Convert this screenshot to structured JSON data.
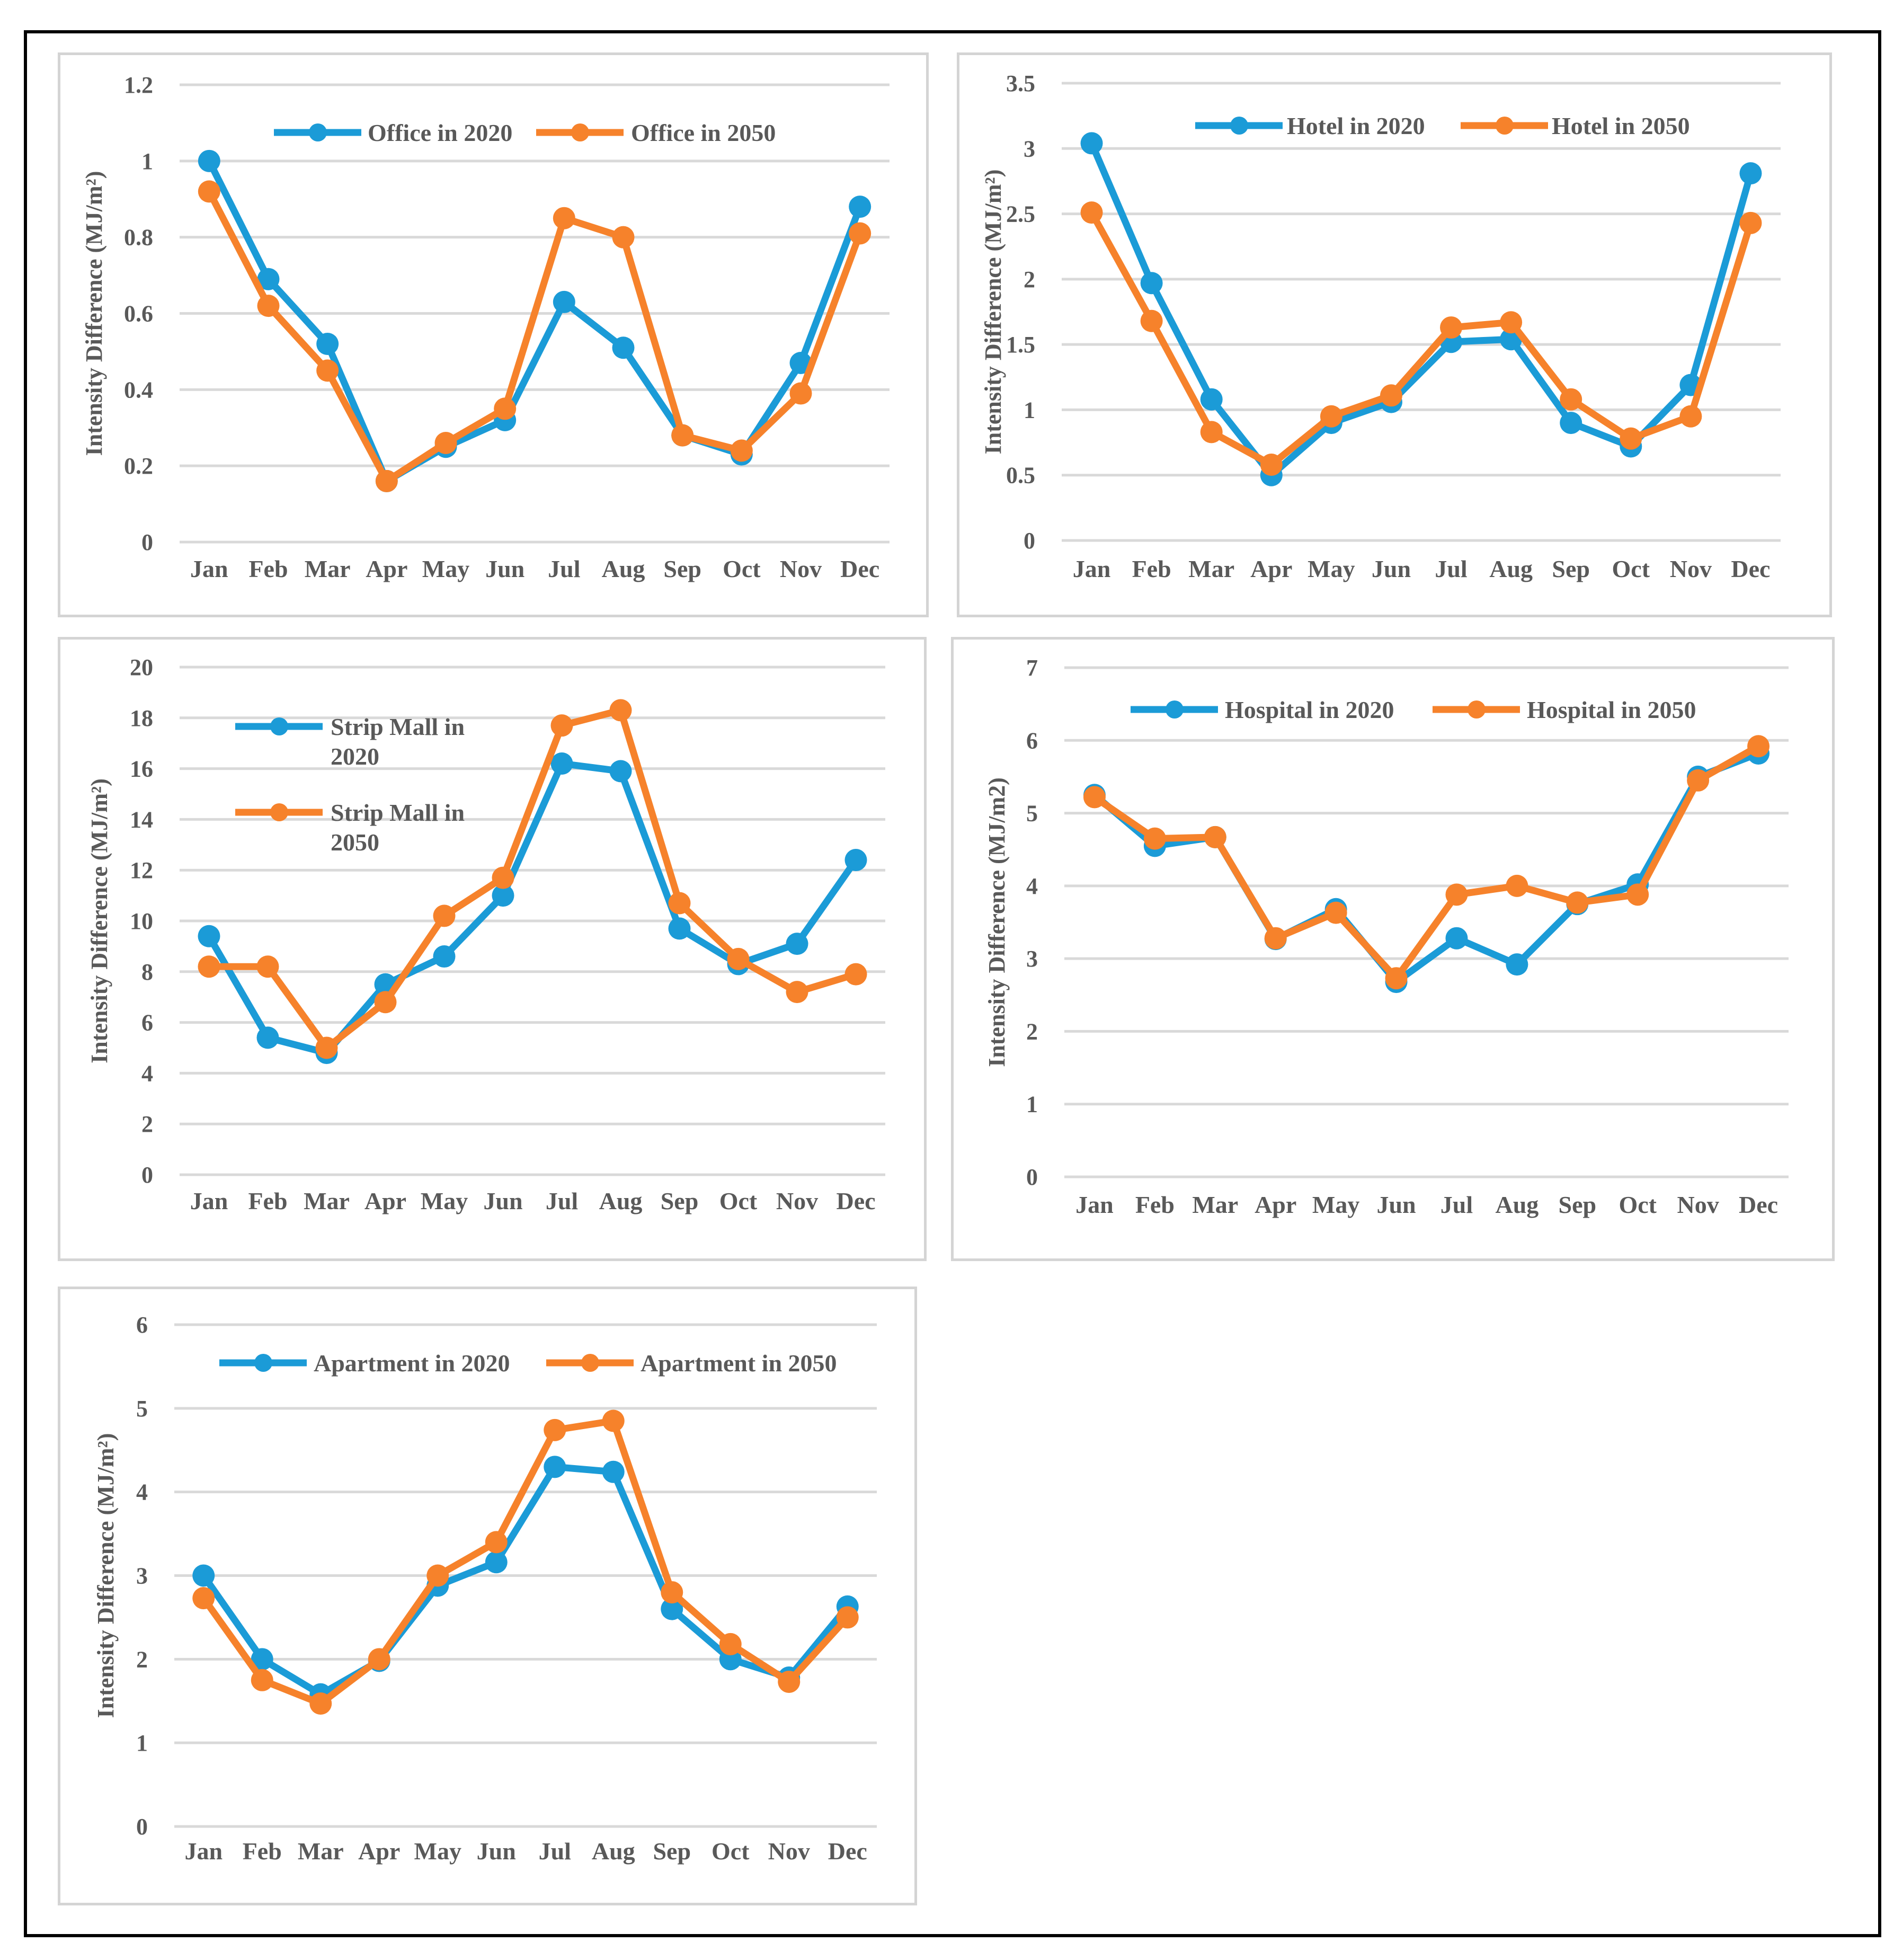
{
  "figure": {
    "months": [
      "Jan",
      "Feb",
      "Mar",
      "Apr",
      "May",
      "Jun",
      "Jul",
      "Aug",
      "Sep",
      "Oct",
      "Nov",
      "Dec"
    ]
  },
  "colors": {
    "series_2020": "#1b9bd7",
    "series_2050": "#f6822b"
  },
  "chart_data": [
    {
      "id": "office",
      "type": "line",
      "ylabel": "Intensity Difference (MJ/m²)",
      "ylim": [
        0,
        1.2
      ],
      "ticks": [
        "0",
        "0.2",
        "0.4",
        "0.6",
        "0.8",
        "1",
        "1.2"
      ],
      "tick_values": [
        0,
        0.2,
        0.4,
        0.6,
        0.8,
        1,
        1.2
      ],
      "legend": "top-center",
      "categories": [
        "Jan",
        "Feb",
        "Mar",
        "Apr",
        "May",
        "Jun",
        "Jul",
        "Aug",
        "Sep",
        "Oct",
        "Nov",
        "Dec"
      ],
      "series": [
        {
          "name": "Office in 2020",
          "values": [
            1.0,
            0.69,
            0.52,
            0.16,
            0.25,
            0.32,
            0.63,
            0.51,
            0.28,
            0.23,
            0.47,
            0.88
          ]
        },
        {
          "name": "Office in 2050",
          "values": [
            0.92,
            0.62,
            0.45,
            0.16,
            0.26,
            0.35,
            0.85,
            0.8,
            0.28,
            0.24,
            0.39,
            0.81
          ]
        }
      ]
    },
    {
      "id": "hotel",
      "type": "line",
      "ylabel": "Intensity Difference (MJ/m²)",
      "ylim": [
        0,
        3.5
      ],
      "ticks": [
        "0",
        "0.5",
        "1",
        "1.5",
        "2",
        "2.5",
        "3",
        "3.5"
      ],
      "tick_values": [
        0,
        0.5,
        1,
        1.5,
        2,
        2.5,
        3,
        3.5
      ],
      "legend": "top-center",
      "categories": [
        "Jan",
        "Feb",
        "Mar",
        "Apr",
        "May",
        "Jun",
        "Jul",
        "Aug",
        "Sep",
        "Oct",
        "Nov",
        "Dec"
      ],
      "series": [
        {
          "name": "Hotel in 2020",
          "values": [
            3.04,
            1.97,
            1.08,
            0.5,
            0.9,
            1.06,
            1.52,
            1.54,
            0.9,
            0.72,
            1.19,
            2.81
          ]
        },
        {
          "name": "Hotel in 2050",
          "values": [
            2.51,
            1.68,
            0.83,
            0.58,
            0.95,
            1.11,
            1.63,
            1.67,
            1.08,
            0.78,
            0.95,
            2.43
          ]
        }
      ]
    },
    {
      "id": "strip-mall",
      "type": "line",
      "ylabel": "Intensity Difference (MJ/m²)",
      "ylim": [
        0,
        20
      ],
      "ticks": [
        "0",
        "2",
        "4",
        "6",
        "8",
        "10",
        "12",
        "14",
        "16",
        "18",
        "20"
      ],
      "tick_values": [
        0,
        2,
        4,
        6,
        8,
        10,
        12,
        14,
        16,
        18,
        20
      ],
      "legend": "top-left",
      "categories": [
        "Jan",
        "Feb",
        "Mar",
        "Apr",
        "May",
        "Jun",
        "Jul",
        "Aug",
        "Sep",
        "Oct",
        "Nov",
        "Dec"
      ],
      "series": [
        {
          "name": "Strip Mall in 2020",
          "values": [
            9.4,
            5.4,
            4.8,
            7.5,
            8.6,
            11.0,
            16.2,
            15.9,
            9.7,
            8.3,
            9.1,
            12.4
          ]
        },
        {
          "name": "Strip Mall in 2050",
          "values": [
            8.2,
            8.2,
            5.0,
            6.8,
            10.2,
            11.7,
            17.7,
            18.3,
            10.7,
            8.5,
            7.2,
            7.9
          ]
        }
      ]
    },
    {
      "id": "hospital",
      "type": "line",
      "ylabel": "Intensity Difference (MJ/m2)",
      "ylim": [
        0,
        7
      ],
      "ticks": [
        "0",
        "1",
        "2",
        "3",
        "4",
        "5",
        "6",
        "7"
      ],
      "tick_values": [
        0,
        1,
        2,
        3,
        4,
        5,
        6,
        7
      ],
      "legend": "top-center",
      "categories": [
        "Jan",
        "Feb",
        "Mar",
        "Apr",
        "May",
        "Jun",
        "Jul",
        "Aug",
        "Sep",
        "Oct",
        "Nov",
        "Dec"
      ],
      "series": [
        {
          "name": "Hospital in 2020",
          "values": [
            5.25,
            4.55,
            4.67,
            3.27,
            3.68,
            2.68,
            3.28,
            2.92,
            3.75,
            4.02,
            5.5,
            5.82
          ]
        },
        {
          "name": "Hospital in 2050",
          "values": [
            5.22,
            4.65,
            4.67,
            3.28,
            3.63,
            2.73,
            3.88,
            4.0,
            3.77,
            3.88,
            5.45,
            5.92
          ]
        }
      ]
    },
    {
      "id": "apartment",
      "type": "line",
      "ylabel": "Intensity Difference (MJ/m²)",
      "ylim": [
        0,
        6
      ],
      "ticks": [
        "0",
        "1",
        "2",
        "3",
        "4",
        "5",
        "6"
      ],
      "tick_values": [
        0,
        1,
        2,
        3,
        4,
        5,
        6
      ],
      "legend": "top-center",
      "categories": [
        "Jan",
        "Feb",
        "Mar",
        "Apr",
        "May",
        "Jun",
        "Jul",
        "Aug",
        "Sep",
        "Oct",
        "Nov",
        "Dec"
      ],
      "series": [
        {
          "name": "Apartment in 2020",
          "values": [
            3.0,
            2.0,
            1.58,
            1.98,
            2.88,
            3.16,
            4.3,
            4.24,
            2.6,
            2.0,
            1.78,
            2.63
          ]
        },
        {
          "name": "Apartment in 2050",
          "values": [
            2.73,
            1.75,
            1.47,
            2.0,
            3.0,
            3.4,
            4.74,
            4.85,
            2.8,
            2.18,
            1.73,
            2.5
          ]
        }
      ]
    }
  ]
}
